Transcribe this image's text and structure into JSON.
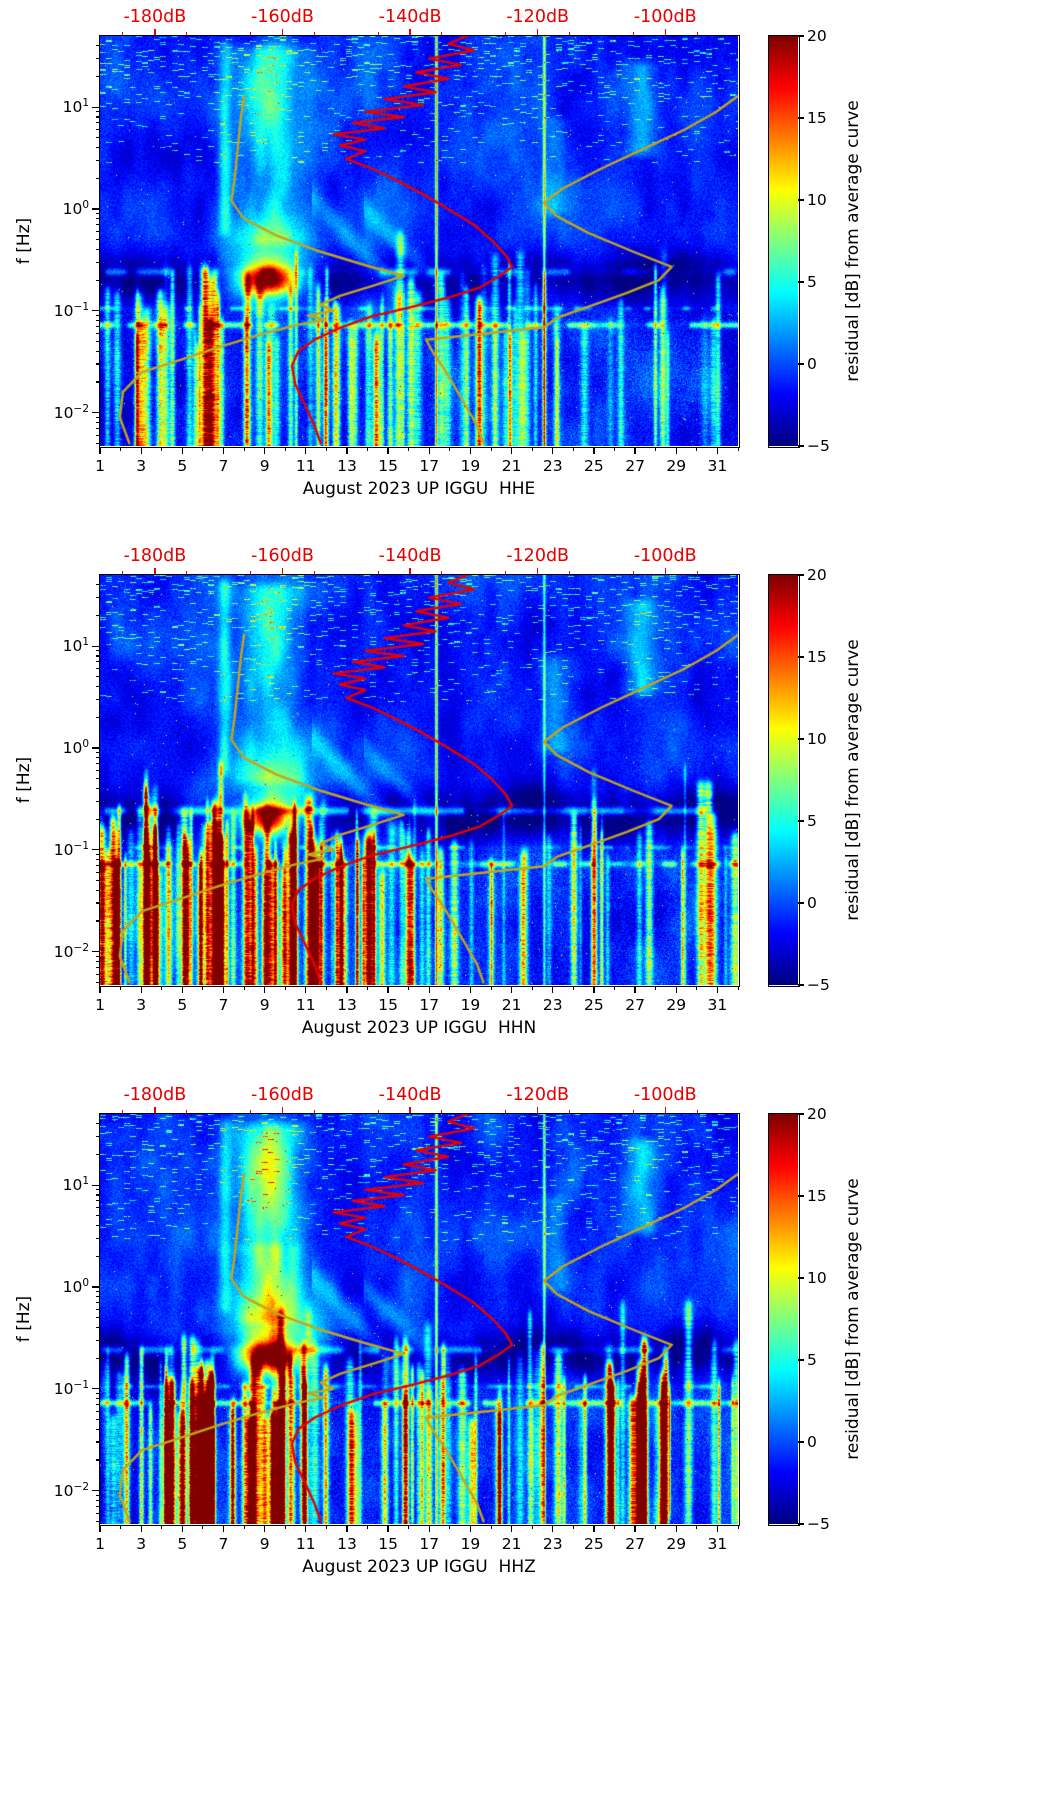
{
  "figure": {
    "background": "#ffffff",
    "text_color": "#000000",
    "annotation_red": "#e60000",
    "noise_model_olive": "#c2a51c"
  },
  "chart_shared": {
    "ylabel": "f [Hz]",
    "f_range_hz": [
      0.0047,
      50
    ],
    "y_ticks": [
      {
        "base": "10",
        "exp": "1",
        "hz": 10
      },
      {
        "base": "10",
        "exp": "0",
        "hz": 1
      },
      {
        "base": "10",
        "exp": "−1",
        "hz": 0.1
      },
      {
        "base": "10",
        "exp": "−2",
        "hz": 0.01
      }
    ],
    "day_range": [
      1,
      32
    ],
    "x_ticks": [
      {
        "label": "1",
        "day": 1
      },
      {
        "label": "3",
        "day": 3
      },
      {
        "label": "5",
        "day": 5
      },
      {
        "label": "7",
        "day": 7
      },
      {
        "label": "9",
        "day": 9
      },
      {
        "label": "11",
        "day": 11
      },
      {
        "label": "13",
        "day": 13
      },
      {
        "label": "15",
        "day": 15
      },
      {
        "label": "17",
        "day": 17
      },
      {
        "label": "19",
        "day": 19
      },
      {
        "label": "21",
        "day": 21
      },
      {
        "label": "23",
        "day": 23
      },
      {
        "label": "25",
        "day": 25
      },
      {
        "label": "27",
        "day": 27
      },
      {
        "label": "29",
        "day": 29
      },
      {
        "label": "31",
        "day": 31
      }
    ],
    "top_axis": {
      "color": "#e60000",
      "range_db": [
        -188.6,
        -88.6
      ],
      "ticks": [
        {
          "label": "-180dB",
          "db": -180
        },
        {
          "label": "-160dB",
          "db": -160
        },
        {
          "label": "-140dB",
          "db": -140
        },
        {
          "label": "-120dB",
          "db": -120
        },
        {
          "label": "-100dB",
          "db": -100
        }
      ]
    },
    "colorbar": {
      "label": "residual [dB] from average curve",
      "range": [
        -5,
        20
      ],
      "colormap": "jet",
      "ticks": [
        {
          "label": "20",
          "v": 20
        },
        {
          "label": "15",
          "v": 15
        },
        {
          "label": "10",
          "v": 10
        },
        {
          "label": "5",
          "v": 5
        },
        {
          "label": "0",
          "v": 0
        },
        {
          "label": "−5",
          "v": -5
        }
      ]
    },
    "curves": {
      "station_median": {
        "color": "#e60000",
        "points": [
          [
            -131,
            50
          ],
          [
            -134,
            42
          ],
          [
            -130,
            36
          ],
          [
            -137,
            30
          ],
          [
            -132,
            26
          ],
          [
            -139,
            22
          ],
          [
            -134,
            19
          ],
          [
            -141,
            16
          ],
          [
            -136,
            14
          ],
          [
            -144,
            12
          ],
          [
            -138,
            10.5
          ],
          [
            -147,
            9
          ],
          [
            -141,
            8
          ],
          [
            -149,
            7
          ],
          [
            -144,
            6.2
          ],
          [
            -152,
            5.4
          ],
          [
            -147,
            4.8
          ],
          [
            -151,
            4.2
          ],
          [
            -147,
            3.7
          ],
          [
            -150,
            3.1
          ],
          [
            -146,
            2.5
          ],
          [
            -142,
            1.9
          ],
          [
            -138,
            1.4
          ],
          [
            -134,
            1.0
          ],
          [
            -130,
            0.7
          ],
          [
            -127,
            0.48
          ],
          [
            -125,
            0.35
          ],
          [
            -124,
            0.27
          ],
          [
            -126,
            0.22
          ],
          [
            -129,
            0.17
          ],
          [
            -134,
            0.135
          ],
          [
            -140,
            0.108
          ],
          [
            -146,
            0.088
          ],
          [
            -151,
            0.068
          ],
          [
            -155,
            0.052
          ],
          [
            -157.5,
            0.04
          ],
          [
            -158.5,
            0.029
          ],
          [
            -158,
            0.019
          ],
          [
            -156.5,
            0.012
          ],
          [
            -155,
            0.0075
          ],
          [
            -154,
            0.005
          ]
        ]
      },
      "noise_model_low": {
        "color": "#c2a51c",
        "points": [
          [
            -166,
            13
          ],
          [
            -166.5,
            8
          ],
          [
            -167,
            4
          ],
          [
            -167.5,
            2
          ],
          [
            -168,
            1.2
          ],
          [
            -166,
            0.8
          ],
          [
            -161,
            0.55
          ],
          [
            -154,
            0.38
          ],
          [
            -147,
            0.28
          ],
          [
            -141,
            0.22
          ],
          [
            -146,
            0.175
          ],
          [
            -151,
            0.14
          ],
          [
            -154,
            0.115
          ],
          [
            -152,
            0.1
          ],
          [
            -156,
            0.09
          ],
          [
            -153.5,
            0.082
          ],
          [
            -158,
            0.072
          ],
          [
            -164,
            0.057
          ],
          [
            -170,
            0.044
          ],
          [
            -176,
            0.033
          ],
          [
            -182,
            0.025
          ],
          [
            -185,
            0.016
          ],
          [
            -185.5,
            0.009
          ],
          [
            -184,
            0.005
          ]
        ]
      },
      "noise_model_high": {
        "color": "#c2a51c",
        "points": [
          [
            -88.5,
            13
          ],
          [
            -92,
            9
          ],
          [
            -97,
            6
          ],
          [
            -103,
            4
          ],
          [
            -110,
            2.5
          ],
          [
            -116,
            1.6
          ],
          [
            -119,
            1.15
          ],
          [
            -117,
            0.85
          ],
          [
            -112,
            0.58
          ],
          [
            -105,
            0.38
          ],
          [
            -99,
            0.27
          ],
          [
            -101,
            0.2
          ],
          [
            -106,
            0.15
          ],
          [
            -112,
            0.11
          ],
          [
            -117,
            0.085
          ],
          [
            -119,
            0.069
          ],
          [
            -137.5,
            0.052
          ],
          [
            -136.5,
            0.04
          ],
          [
            -134.5,
            0.026
          ],
          [
            -132,
            0.014
          ],
          [
            -129.5,
            0.0075
          ],
          [
            -128.5,
            0.005
          ]
        ]
      }
    }
  },
  "chart_data": [
    {
      "type": "heatmap",
      "channel": "HHE",
      "xlabel": "August 2023 UP IGGU  HHE",
      "seed": 11,
      "stripes": {
        "count": 85,
        "lowbias": 0.6,
        "amp": [
          3.5,
          13
        ],
        "ftop": [
          0.04,
          0.25
        ],
        "tall": 0.18
      },
      "features": [
        {
          "kind": "darkband",
          "f": 0.21,
          "sig": 0.17,
          "amp": -3.8,
          "wav": 0.06
        },
        {
          "kind": "thinband",
          "f": 0.072,
          "sig": 0.02,
          "amp": 8,
          "patch": 0.45,
          "pscale": 1.5
        },
        {
          "kind": "thinband",
          "f": 0.105,
          "sig": 0.015,
          "amp": 4.5,
          "patch": 0.6,
          "pscale": 2.1
        },
        {
          "kind": "thinband",
          "f": 0.24,
          "sig": 0.028,
          "amp": 5,
          "patch": 0.55,
          "pscale": 1.2
        },
        {
          "kind": "blob",
          "d": 9.2,
          "f": 0.2,
          "sd": 0.85,
          "sf": 0.1,
          "amp": 19
        },
        {
          "kind": "blob",
          "d": 9.3,
          "f": 0.33,
          "sd": 1.7,
          "sf": 0.28,
          "amp": 6.5
        },
        {
          "kind": "colband",
          "d": 9.3,
          "sd": 1.15,
          "f1": 0.4,
          "f2": 45,
          "amp": 4.5
        },
        {
          "kind": "blob",
          "d": 9.0,
          "f": 14,
          "sd": 0.9,
          "sf": 0.3,
          "amp": 5
        },
        {
          "kind": "colband",
          "d": 7.05,
          "sd": 0.2,
          "f1": 0.5,
          "f2": 50,
          "amp": 5
        },
        {
          "kind": "colband",
          "d": 27.3,
          "sd": 0.55,
          "f1": 3,
          "f2": 32,
          "amp": 4.5
        },
        {
          "kind": "colband",
          "d": 23.1,
          "sd": 0.5,
          "f1": 0.8,
          "f2": 9,
          "amp": 3
        },
        {
          "kind": "diag",
          "d0": 11.3,
          "f0": 1.3,
          "slope": -0.22,
          "len": 4.5,
          "amp": 3,
          "sig": 0.1
        },
        {
          "kind": "diag",
          "d0": 13.8,
          "f0": 1.0,
          "slope": -0.2,
          "len": 4,
          "amp": 2.5,
          "sig": 0.09
        },
        {
          "kind": "vline",
          "d": 17.35,
          "amp": 14
        },
        {
          "kind": "vline",
          "d": 22.6,
          "amp": 11
        },
        {
          "kind": "blob",
          "d": 1.2,
          "f": 0.012,
          "sd": 0.9,
          "sf": 0.5,
          "amp": -3
        }
      ]
    },
    {
      "type": "heatmap",
      "channel": "HHN",
      "xlabel": "August 2023 UP IGGU  HHN",
      "seed": 23,
      "stripes": {
        "count": 135,
        "lowbias": 0.74,
        "amp": [
          4,
          16
        ],
        "ftop": [
          0.05,
          0.3
        ],
        "tall": 0.22
      },
      "features": [
        {
          "kind": "darkband",
          "f": 0.21,
          "sig": 0.17,
          "amp": -3.8,
          "wav": 0.06
        },
        {
          "kind": "thinband",
          "f": 0.072,
          "sig": 0.02,
          "amp": 8,
          "patch": 0.45,
          "pscale": 1.5
        },
        {
          "kind": "thinband",
          "f": 0.105,
          "sig": 0.015,
          "amp": 4.5,
          "patch": 0.6,
          "pscale": 2.1
        },
        {
          "kind": "thinband",
          "f": 0.24,
          "sig": 0.03,
          "amp": 6.5,
          "patch": 0.35,
          "pscale": 1.2
        },
        {
          "kind": "blob",
          "d": 9.1,
          "f": 0.2,
          "sd": 0.72,
          "sf": 0.1,
          "amp": 17
        },
        {
          "kind": "blob",
          "d": 9.3,
          "f": 0.33,
          "sd": 1.7,
          "sf": 0.28,
          "amp": 6.5
        },
        {
          "kind": "colband",
          "d": 9.3,
          "sd": 1.15,
          "f1": 0.4,
          "f2": 45,
          "amp": 4.5
        },
        {
          "kind": "blob",
          "d": 9.0,
          "f": 14,
          "sd": 0.9,
          "sf": 0.3,
          "amp": 4
        },
        {
          "kind": "blob",
          "d": 4.3,
          "f": 0.02,
          "sd": 1.2,
          "sf": 0.5,
          "amp": 3.5
        },
        {
          "kind": "colband",
          "d": 7.05,
          "sd": 0.2,
          "f1": 0.5,
          "f2": 50,
          "amp": 5
        },
        {
          "kind": "colband",
          "d": 27.3,
          "sd": 0.55,
          "f1": 3,
          "f2": 32,
          "amp": 4.5
        },
        {
          "kind": "colband",
          "d": 23.1,
          "sd": 0.5,
          "f1": 0.8,
          "f2": 9,
          "amp": 3
        },
        {
          "kind": "diag",
          "d0": 11.3,
          "f0": 1.3,
          "slope": -0.22,
          "len": 4.5,
          "amp": 3,
          "sig": 0.1
        },
        {
          "kind": "diag",
          "d0": 13.8,
          "f0": 1.0,
          "slope": -0.2,
          "len": 4,
          "amp": 2.5,
          "sig": 0.09
        },
        {
          "kind": "vline",
          "d": 17.35,
          "amp": 14
        },
        {
          "kind": "vline",
          "d": 22.6,
          "amp": 8
        },
        {
          "kind": "blob",
          "d": 1.2,
          "f": 0.012,
          "sd": 0.9,
          "sf": 0.5,
          "amp": -3
        }
      ]
    },
    {
      "type": "heatmap",
      "channel": "HHZ",
      "xlabel": "August 2023 UP IGGU  HHZ",
      "seed": 37,
      "stripes": {
        "count": 105,
        "lowbias": 0.55,
        "amp": [
          4,
          15
        ],
        "ftop": [
          0.04,
          0.3
        ],
        "tall": 0.2,
        "cluster": {
          "d0": 5,
          "d1": 11.5,
          "count": 28,
          "amp": [
            7,
            17
          ],
          "ftop": [
            0.04,
            0.2
          ]
        }
      },
      "features": [
        {
          "kind": "darkband",
          "f": 0.21,
          "sig": 0.17,
          "amp": -3.8,
          "wav": 0.06
        },
        {
          "kind": "thinband",
          "f": 0.072,
          "sig": 0.02,
          "amp": 8,
          "patch": 0.45,
          "pscale": 1.5
        },
        {
          "kind": "thinband",
          "f": 0.105,
          "sig": 0.015,
          "amp": 4.5,
          "patch": 0.6,
          "pscale": 2.1
        },
        {
          "kind": "thinband",
          "f": 0.24,
          "sig": 0.028,
          "amp": 5,
          "patch": 0.55,
          "pscale": 1.2
        },
        {
          "kind": "blob",
          "d": 9.2,
          "f": 0.21,
          "sd": 0.95,
          "sf": 0.11,
          "amp": 20
        },
        {
          "kind": "blob",
          "d": 9.3,
          "f": 0.33,
          "sd": 1.7,
          "sf": 0.28,
          "amp": 8
        },
        {
          "kind": "colband",
          "d": 9.3,
          "sd": 1.15,
          "f1": 0.4,
          "f2": 45,
          "amp": 5.5
        },
        {
          "kind": "blob",
          "d": 9.1,
          "f": 13,
          "sd": 1.0,
          "sf": 0.33,
          "amp": 8
        },
        {
          "kind": "colband",
          "d": 9.0,
          "sd": 1.4,
          "f1": 0.3,
          "f2": 3,
          "amp": 3.5
        },
        {
          "kind": "colband",
          "d": 7.05,
          "sd": 0.2,
          "f1": 0.5,
          "f2": 50,
          "amp": 5
        },
        {
          "kind": "colband",
          "d": 27.3,
          "sd": 0.55,
          "f1": 3,
          "f2": 32,
          "amp": 4.5
        },
        {
          "kind": "colband",
          "d": 23.1,
          "sd": 0.5,
          "f1": 0.8,
          "f2": 9,
          "amp": 3
        },
        {
          "kind": "colband",
          "d": 28.7,
          "sd": 0.035,
          "f1": 0.005,
          "f2": 0.12,
          "amp": 13
        },
        {
          "kind": "diag",
          "d0": 11.3,
          "f0": 1.3,
          "slope": -0.22,
          "len": 4.5,
          "amp": 3,
          "sig": 0.1
        },
        {
          "kind": "diag",
          "d0": 13.8,
          "f0": 1.0,
          "slope": -0.2,
          "len": 4,
          "amp": 2.5,
          "sig": 0.09
        },
        {
          "kind": "vline",
          "d": 17.35,
          "amp": 12
        },
        {
          "kind": "vline",
          "d": 22.6,
          "amp": 10
        },
        {
          "kind": "blob",
          "d": 1.2,
          "f": 0.012,
          "sd": 0.9,
          "sf": 0.5,
          "amp": -3
        }
      ]
    }
  ]
}
